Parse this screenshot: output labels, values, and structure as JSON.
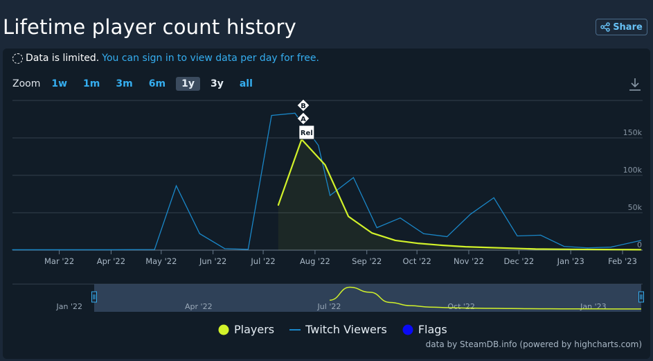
{
  "header": {
    "title": "Lifetime player count history",
    "share_label": "Share"
  },
  "notice": {
    "text": "Data is limited.",
    "link": "You can sign in to view data per day for free."
  },
  "zoom": {
    "label": "Zoom",
    "options": [
      "1w",
      "1m",
      "3m",
      "6m",
      "1y",
      "3y",
      "all"
    ],
    "active": "1y"
  },
  "legend": {
    "players": "Players",
    "twitch": "Twitch Viewers",
    "flags": "Flags"
  },
  "credits": "data by SteamDB.info (powered by highcharts.com)",
  "colors": {
    "players": "#d2f22a",
    "twitch": "#1a87c8",
    "flags": "#0a0af5",
    "background": "#1b2838"
  },
  "chart_data": {
    "type": "line",
    "x_ticks": [
      "Mar '22",
      "Apr '22",
      "May '22",
      "Jun '22",
      "Jul '22",
      "Aug '22",
      "Sep '22",
      "Oct '22",
      "Nov '22",
      "Dec '22",
      "Jan '23",
      "Feb '23"
    ],
    "y_ticks": [
      "0",
      "50k",
      "100k",
      "150k"
    ],
    "ylim": [
      0,
      200000
    ],
    "series": [
      {
        "name": "Players",
        "points": [
          [
            "2022-07-10",
            60000
          ],
          [
            "2022-07-24",
            148000
          ],
          [
            "2022-08-07",
            114000
          ],
          [
            "2022-08-21",
            45000
          ],
          [
            "2022-09-04",
            23000
          ],
          [
            "2022-09-18",
            13000
          ],
          [
            "2022-10-02",
            9000
          ],
          [
            "2022-10-16",
            6500
          ],
          [
            "2022-10-30",
            4500
          ],
          [
            "2022-11-13",
            3500
          ],
          [
            "2022-11-27",
            2500
          ],
          [
            "2022-12-11",
            1500
          ],
          [
            "2022-12-25",
            1200
          ],
          [
            "2023-01-08",
            1000
          ],
          [
            "2023-01-22",
            800
          ],
          [
            "2023-02-05",
            700
          ],
          [
            "2023-02-12",
            600
          ]
        ]
      },
      {
        "name": "Twitch Viewers",
        "points": [
          [
            "2022-02-01",
            500
          ],
          [
            "2022-03-01",
            500
          ],
          [
            "2022-04-01",
            500
          ],
          [
            "2022-04-27",
            800
          ],
          [
            "2022-05-10",
            86000
          ],
          [
            "2022-05-24",
            22000
          ],
          [
            "2022-06-08",
            2000
          ],
          [
            "2022-06-22",
            1000
          ],
          [
            "2022-07-06",
            180000
          ],
          [
            "2022-07-20",
            183000
          ],
          [
            "2022-08-03",
            140000
          ],
          [
            "2022-08-10",
            73000
          ],
          [
            "2022-08-24",
            97000
          ],
          [
            "2022-09-07",
            30000
          ],
          [
            "2022-09-21",
            43000
          ],
          [
            "2022-10-05",
            22000
          ],
          [
            "2022-10-19",
            18000
          ],
          [
            "2022-11-02",
            48000
          ],
          [
            "2022-11-16",
            70000
          ],
          [
            "2022-11-30",
            19000
          ],
          [
            "2022-12-14",
            20000
          ],
          [
            "2022-12-28",
            5000
          ],
          [
            "2023-01-11",
            3000
          ],
          [
            "2023-01-25",
            4000
          ],
          [
            "2023-02-12",
            13000
          ]
        ]
      }
    ],
    "flags": [
      {
        "label": "B",
        "date": "2022-07-25"
      },
      {
        "label": "A",
        "date": "2022-07-25"
      },
      {
        "label": "Rel",
        "date": "2022-07-27"
      }
    ],
    "navigator": {
      "ticks": [
        "Jan '22",
        "Apr '22",
        "Jul '22",
        "Oct '22",
        "Jan '23"
      ]
    },
    "grid": true,
    "legend_position": "bottom"
  }
}
